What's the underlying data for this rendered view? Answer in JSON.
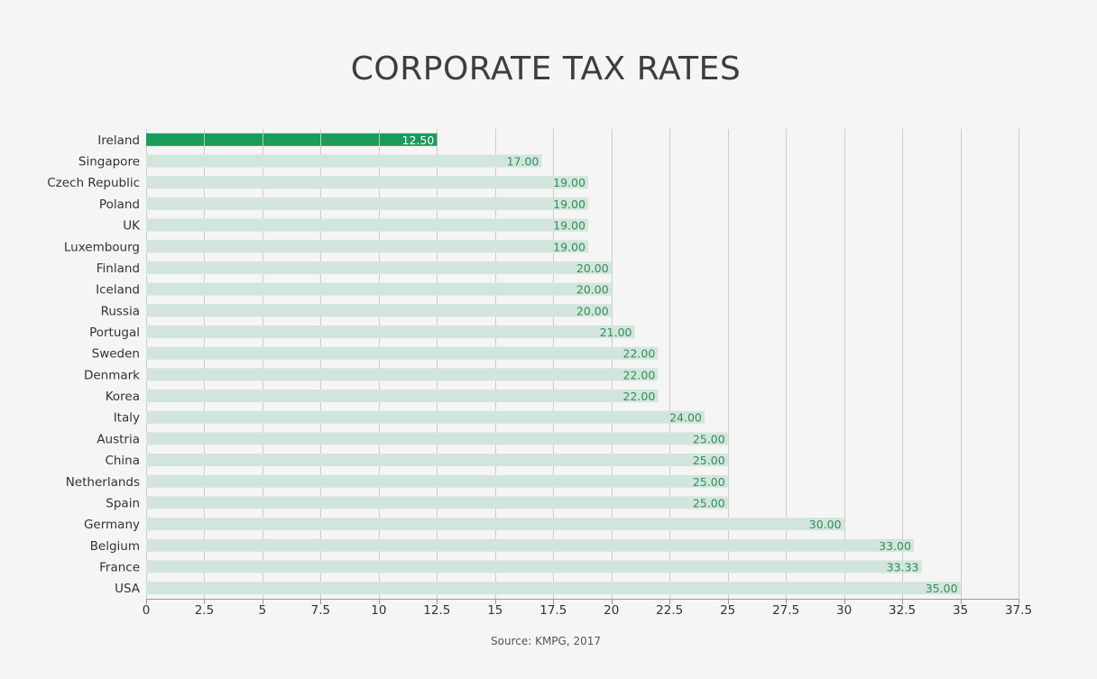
{
  "colors": {
    "background": "#f5f5f5",
    "highlight_bar": "#1b9c5a",
    "bar": "#d2e5dc",
    "label_on_highlight": "#ffffff",
    "label_on_bar": "#2f8f5b",
    "grid": "#cccccc"
  },
  "source": "Source: KMPG, 2017",
  "chart_data": {
    "type": "bar",
    "orientation": "horizontal",
    "title": "CORPORATE TAX RATES",
    "xlabel": "",
    "ylabel": "",
    "xlim": [
      0,
      37.5
    ],
    "x_ticks": [
      0,
      2.5,
      5,
      7.5,
      10,
      12.5,
      15,
      17.5,
      20,
      22.5,
      25,
      27.5,
      30,
      32.5,
      35,
      37.5
    ],
    "x_tick_labels": [
      "0",
      "2.5",
      "5",
      "7.5",
      "10",
      "12.5",
      "15",
      "17.5",
      "20",
      "22.5",
      "25",
      "27.5",
      "30",
      "32.5",
      "35",
      "37.5"
    ],
    "grid": true,
    "legend": "none",
    "highlight_category": "Ireland",
    "categories": [
      "Ireland",
      "Singapore",
      "Czech Republic",
      "Poland",
      "UK",
      "Luxembourg",
      "Finland",
      "Iceland",
      "Russia",
      "Portugal",
      "Sweden",
      "Denmark",
      "Korea",
      "Italy",
      "Austria",
      "China",
      "Netherlands",
      "Spain",
      "Germany",
      "Belgium",
      "France",
      "USA"
    ],
    "values": [
      12.5,
      17,
      19,
      19,
      19,
      19,
      20,
      20,
      20,
      21,
      22,
      22,
      22,
      24,
      25,
      25,
      25,
      25,
      30,
      33,
      33.33,
      35
    ],
    "value_labels": [
      "12.50",
      "17.00",
      "19.00",
      "19.00",
      "19.00",
      "19.00",
      "20.00",
      "20.00",
      "20.00",
      "21.00",
      "22.00",
      "22.00",
      "22.00",
      "24.00",
      "25.00",
      "25.00",
      "25.00",
      "25.00",
      "30.00",
      "33.00",
      "33.33",
      "35.00"
    ]
  }
}
